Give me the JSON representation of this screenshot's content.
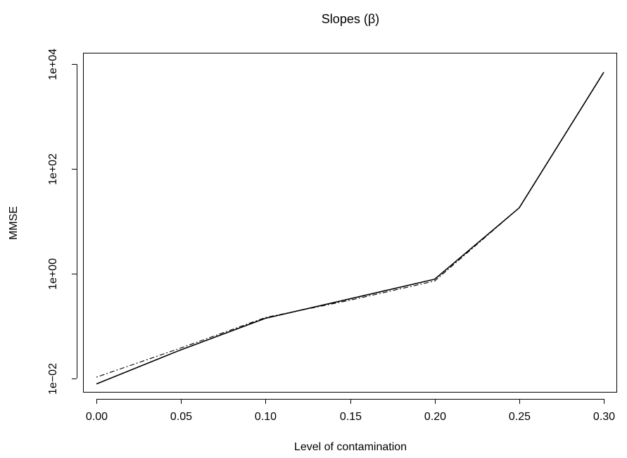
{
  "chart_data": {
    "type": "line",
    "title": "Slopes (β)",
    "xlabel": "Level of contamination",
    "ylabel": "MMSE",
    "x": [
      0.0,
      0.05,
      0.1,
      0.15,
      0.2,
      0.25,
      0.3
    ],
    "x_tick_labels": [
      "0.00",
      "0.05",
      "0.10",
      "0.15",
      "0.20",
      "0.25",
      "0.30"
    ],
    "y_scale": "log",
    "y_ticks": [
      0.01,
      1,
      100,
      10000
    ],
    "y_tick_labels": [
      "1e−02",
      "1e+00",
      "1e+02",
      "1e+04"
    ],
    "xlim": [
      -0.0075,
      0.3075
    ],
    "ylim": [
      0.0055,
      16000
    ],
    "grid": false,
    "legend": "none",
    "series": [
      {
        "style": "solid",
        "color": "#000000",
        "values": [
          0.0078,
          0.035,
          0.14,
          0.33,
          0.78,
          18,
          7000
        ]
      },
      {
        "style": "dotdash",
        "color": "#000000",
        "values": [
          0.0105,
          0.038,
          0.145,
          0.31,
          0.72,
          18,
          7000
        ]
      }
    ]
  }
}
